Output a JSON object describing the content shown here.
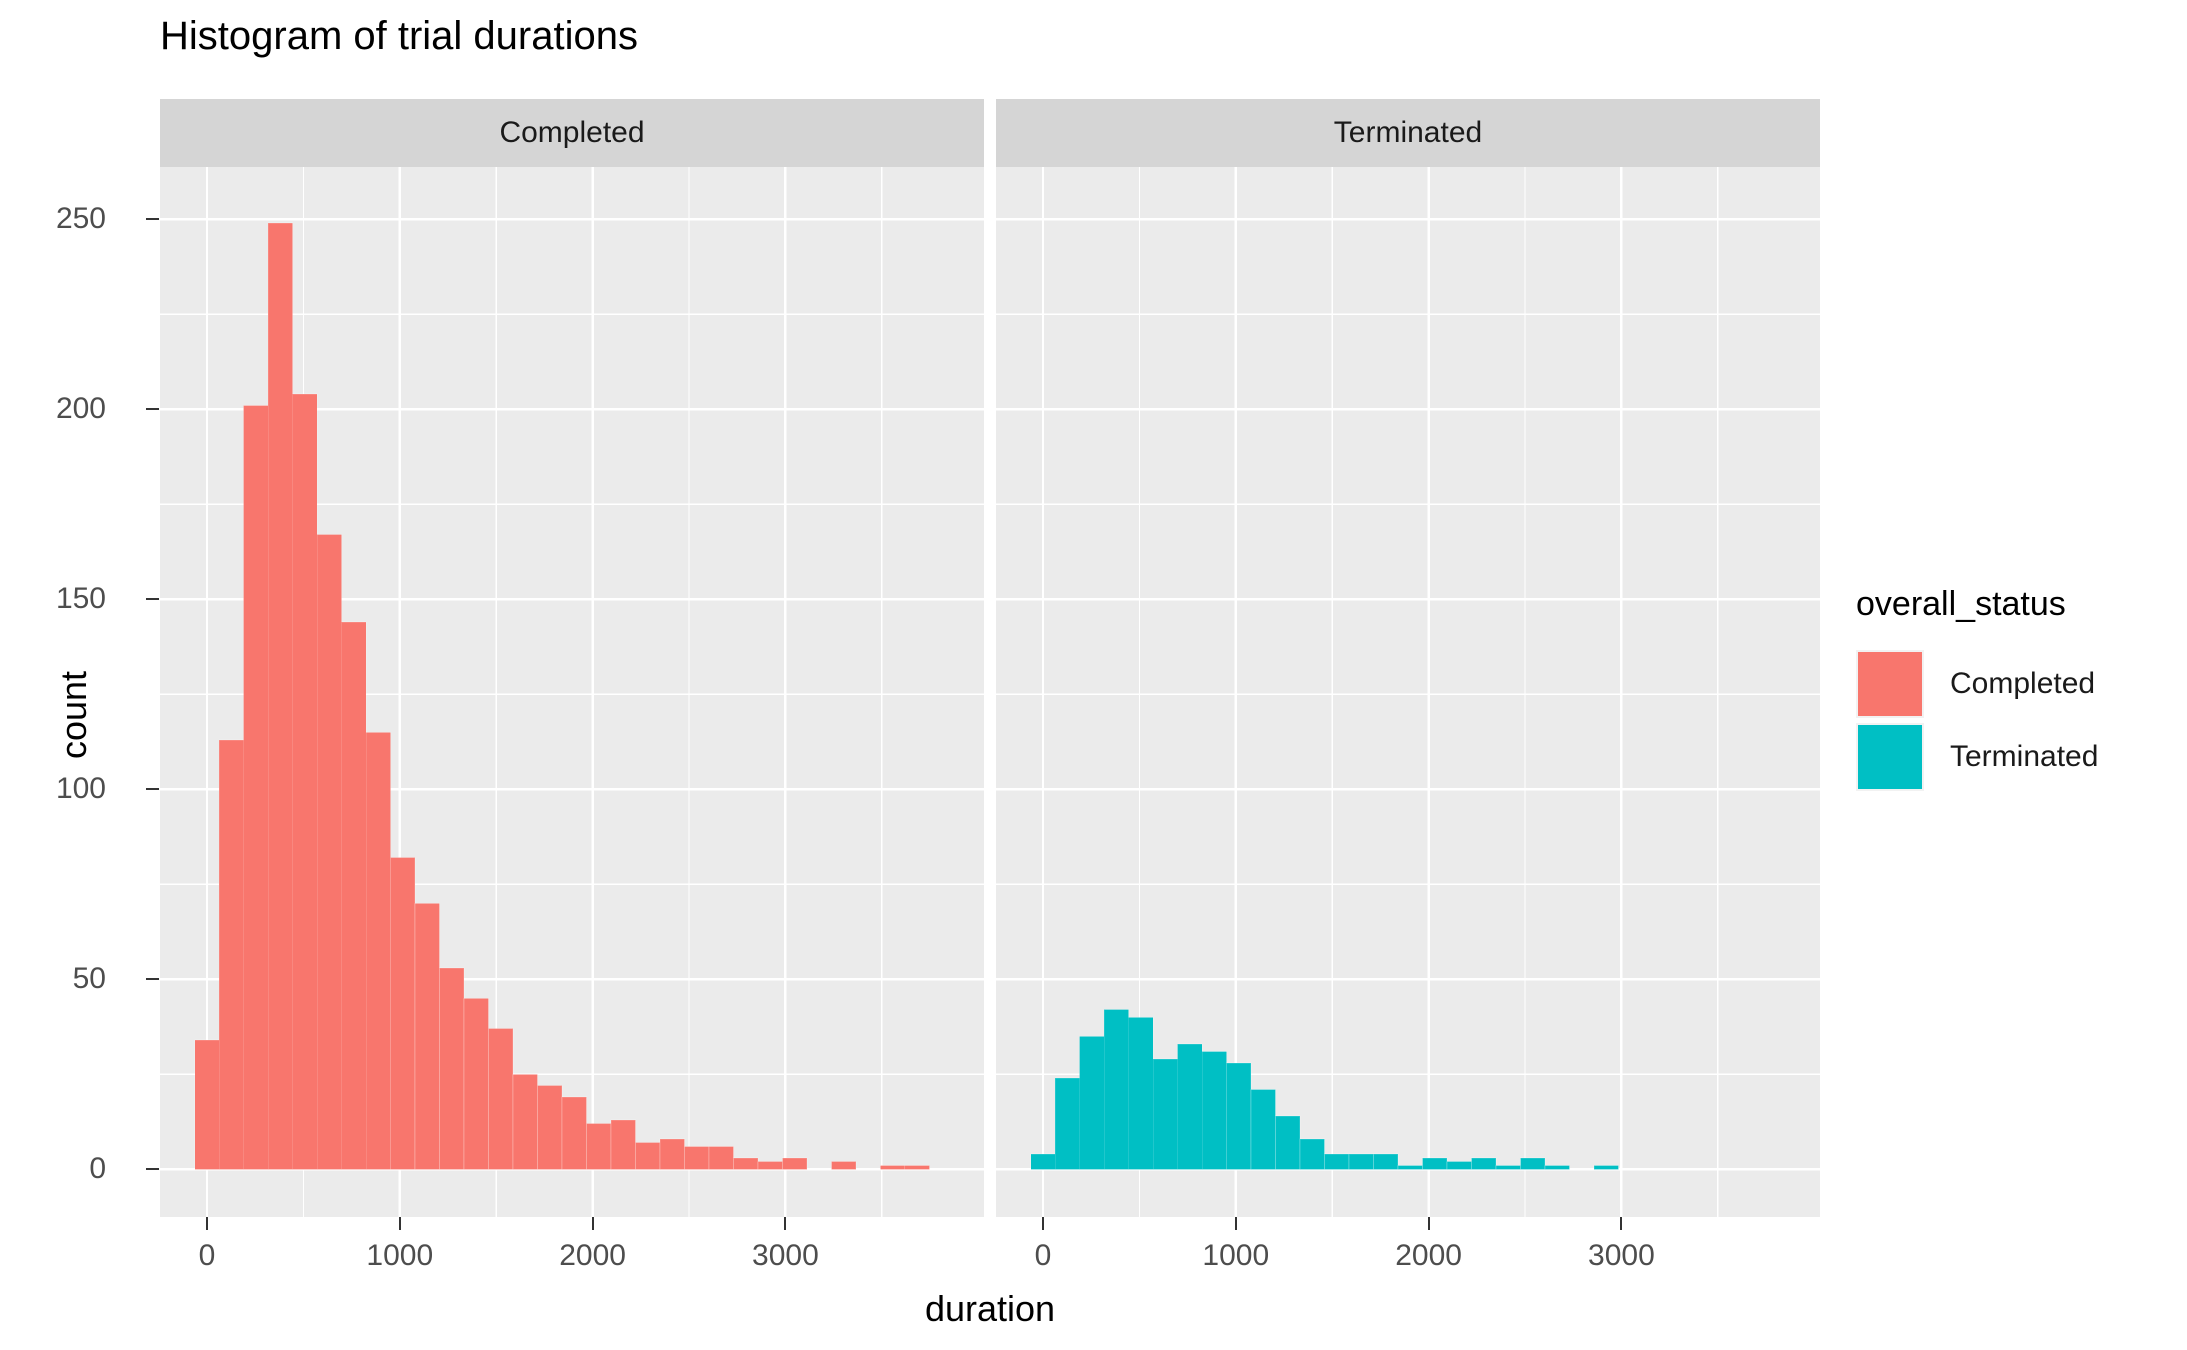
{
  "title": "Histogram of trial durations",
  "axes": {
    "x_title": "duration",
    "y_title": "count",
    "x_ticks": [
      0,
      1000,
      2000,
      3000
    ],
    "y_ticks": [
      250,
      200,
      150,
      100,
      50,
      0
    ]
  },
  "facets": [
    {
      "label": "Completed"
    },
    {
      "label": "Terminated"
    }
  ],
  "legend": {
    "title": "overall_status",
    "items": [
      {
        "label": "Completed",
        "color": "#F8766D"
      },
      {
        "label": "Terminated",
        "color": "#00BFC4"
      }
    ]
  },
  "colors": {
    "panel_background": "#EBEBEB",
    "strip_background": "#D5D5D5",
    "gridline": "#FFFFFF",
    "tick_mark": "#333333",
    "tick_label": "#4D4D4D",
    "axis_title": "#000000"
  },
  "chart_data": {
    "type": "bar",
    "subtype": "faceted-histogram",
    "title": "Histogram of trial durations",
    "xlabel": "duration",
    "ylabel": "count",
    "facet_variable": "overall_status",
    "legend_position": "right",
    "grid": true,
    "bins": 30,
    "bin_width": 127,
    "first_bin_center": 0,
    "xlim": [
      -250,
      4030
    ],
    "ylim": [
      0,
      262
    ],
    "x_ticks": [
      0,
      1000,
      2000,
      3000
    ],
    "y_ticks": [
      0,
      50,
      100,
      150,
      200,
      250
    ],
    "x_minor_ticks": [
      500,
      1500,
      2500,
      3500
    ],
    "y_minor_ticks": [
      25,
      75,
      125,
      175,
      225
    ],
    "series": [
      {
        "name": "Completed",
        "color": "#F8766D",
        "counts": [
          34,
          113,
          201,
          249,
          204,
          167,
          144,
          115,
          82,
          70,
          53,
          45,
          37,
          25,
          22,
          19,
          12,
          13,
          7,
          8,
          6,
          6,
          3,
          2,
          3,
          0,
          2,
          0,
          1,
          1
        ]
      },
      {
        "name": "Terminated",
        "color": "#00BFC4",
        "counts": [
          4,
          24,
          35,
          42,
          40,
          29,
          33,
          31,
          28,
          21,
          14,
          8,
          4,
          4,
          4,
          1,
          3,
          2,
          3,
          1,
          3,
          1,
          0,
          1,
          0,
          0,
          0,
          0,
          0,
          0
        ]
      }
    ]
  }
}
